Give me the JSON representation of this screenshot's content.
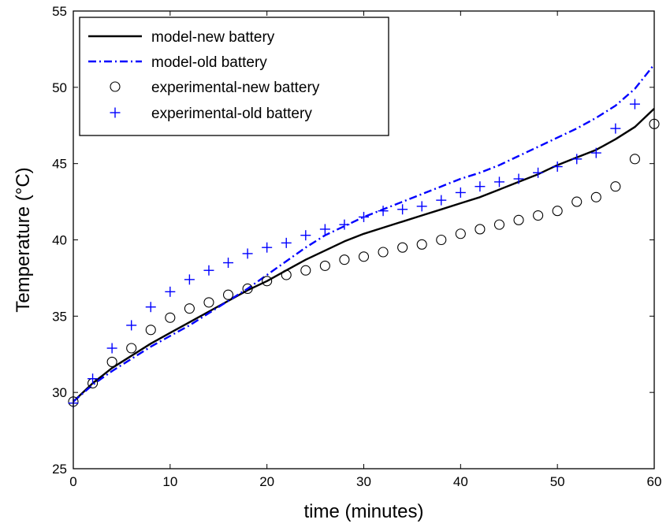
{
  "chart_data": {
    "type": "line",
    "title": "",
    "xlabel": "time (minutes)",
    "ylabel": "Temperature (°C)",
    "xlim": [
      0,
      60
    ],
    "ylim": [
      25,
      55
    ],
    "xticks": [
      0,
      10,
      20,
      30,
      40,
      50,
      60
    ],
    "yticks": [
      25,
      30,
      35,
      40,
      45,
      50,
      55
    ],
    "grid": false,
    "legend_position": "top-left",
    "series": [
      {
        "name": "model-new battery",
        "style": "solid",
        "color": "#000000",
        "x": [
          0,
          2,
          4,
          6,
          8,
          10,
          12,
          14,
          16,
          18,
          20,
          22,
          24,
          26,
          28,
          30,
          32,
          34,
          36,
          38,
          40,
          42,
          44,
          46,
          48,
          50,
          52,
          54,
          56,
          58,
          60
        ],
        "y": [
          29.4,
          30.6,
          31.6,
          32.4,
          33.2,
          33.9,
          34.6,
          35.3,
          36.0,
          36.7,
          37.3,
          38.0,
          38.7,
          39.3,
          39.9,
          40.4,
          40.8,
          41.2,
          41.6,
          42.0,
          42.4,
          42.8,
          43.3,
          43.8,
          44.3,
          44.9,
          45.4,
          45.9,
          46.6,
          47.4,
          48.6
        ]
      },
      {
        "name": "model-old battery",
        "style": "dashdot",
        "color": "#0000ff",
        "x": [
          0,
          2,
          4,
          6,
          8,
          10,
          12,
          14,
          16,
          18,
          20,
          22,
          24,
          26,
          28,
          30,
          32,
          34,
          36,
          38,
          40,
          42,
          44,
          46,
          48,
          50,
          52,
          54,
          56,
          58,
          60
        ],
        "y": [
          29.4,
          30.5,
          31.4,
          32.2,
          33.0,
          33.7,
          34.4,
          35.2,
          36.0,
          36.8,
          37.7,
          38.6,
          39.5,
          40.3,
          40.9,
          41.5,
          42.0,
          42.5,
          43.0,
          43.5,
          44.0,
          44.4,
          44.9,
          45.5,
          46.1,
          46.7,
          47.3,
          48.0,
          48.8,
          49.9,
          51.5
        ]
      },
      {
        "name": "experimental-new battery",
        "style": "marker-circle",
        "color": "#000000",
        "x": [
          0,
          2,
          4,
          6,
          8,
          10,
          12,
          14,
          16,
          18,
          20,
          22,
          24,
          26,
          28,
          30,
          32,
          34,
          36,
          38,
          40,
          42,
          44,
          46,
          48,
          50,
          52,
          54,
          56,
          58,
          60
        ],
        "y": [
          29.4,
          30.6,
          32.0,
          32.9,
          34.1,
          34.9,
          35.5,
          35.9,
          36.4,
          36.8,
          37.3,
          37.7,
          38.0,
          38.3,
          38.7,
          38.9,
          39.2,
          39.5,
          39.7,
          40.0,
          40.4,
          40.7,
          41.0,
          41.3,
          41.6,
          41.9,
          42.5,
          42.8,
          43.5,
          45.3,
          47.6
        ]
      },
      {
        "name": "experimental-old battery",
        "style": "marker-plus",
        "color": "#0000ff",
        "x": [
          0,
          2,
          4,
          6,
          8,
          10,
          12,
          14,
          16,
          18,
          20,
          22,
          24,
          26,
          28,
          30,
          32,
          34,
          36,
          38,
          40,
          42,
          44,
          46,
          48,
          50,
          52,
          54,
          56,
          58
        ],
        "y": [
          29.3,
          30.9,
          32.9,
          34.4,
          35.6,
          36.6,
          37.4,
          38.0,
          38.5,
          39.1,
          39.5,
          39.8,
          40.3,
          40.7,
          41.0,
          41.5,
          41.9,
          42.0,
          42.2,
          42.6,
          43.1,
          43.5,
          43.8,
          44.0,
          44.4,
          44.8,
          45.3,
          45.7,
          47.3,
          48.9
        ]
      }
    ]
  }
}
